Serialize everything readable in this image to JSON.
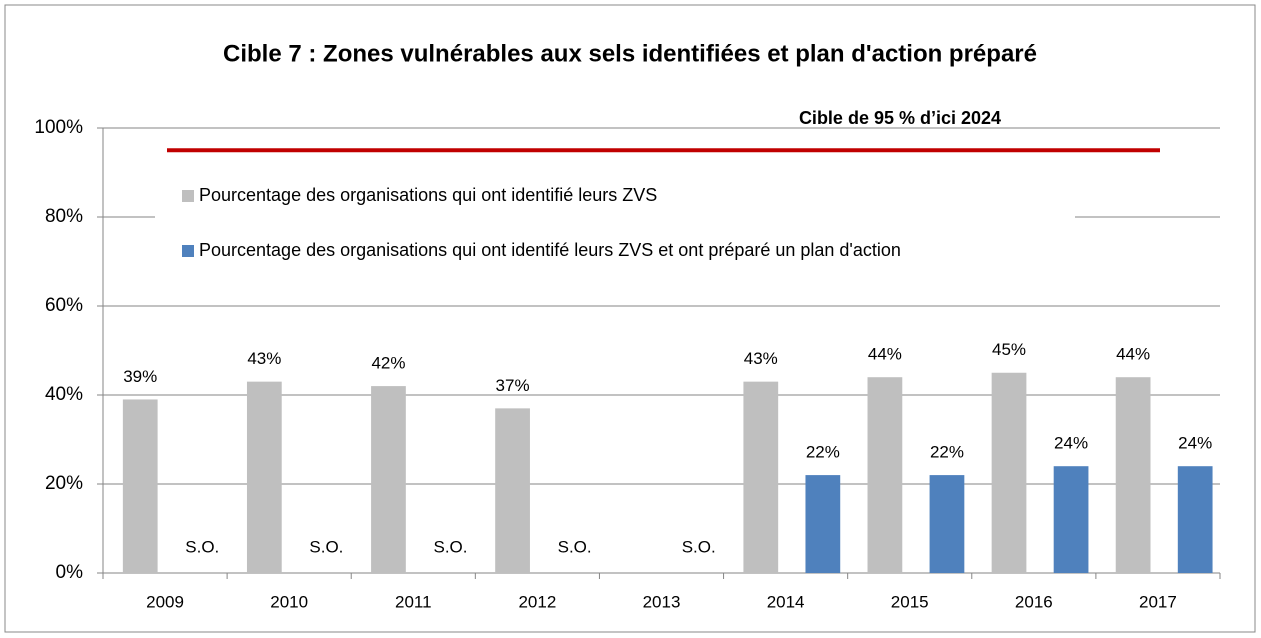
{
  "chart_data": {
    "type": "bar",
    "title": "Cible 7 : Zones vulnérables aux sels identifiées et plan d'action préparé",
    "categories": [
      "2009",
      "2010",
      "2011",
      "2012",
      "2013",
      "2014",
      "2015",
      "2016",
      "2017"
    ],
    "series": [
      {
        "name": "Pourcentage des organisations qui ont identifié leurs ZVS",
        "color": "#bfbfbf",
        "values": [
          39,
          43,
          42,
          37,
          null,
          43,
          44,
          45,
          44
        ],
        "value_labels": [
          "39%",
          "43%",
          "42%",
          "37%",
          null,
          "43%",
          "44%",
          "45%",
          "44%"
        ]
      },
      {
        "name": "Pourcentage des organisations qui ont identifé leurs ZVS et ont préparé un plan d'action",
        "color": "#4f81bd",
        "values": [
          null,
          null,
          null,
          null,
          null,
          22,
          22,
          24,
          24
        ],
        "value_labels": [
          "S.O.",
          "S.O.",
          "S.O.",
          "S.O.",
          "S.O.",
          "22%",
          "22%",
          "24%",
          "24%"
        ]
      }
    ],
    "target": {
      "value": 95,
      "label": "Cible de 95 % d’ici 2024",
      "color": "#c00000"
    },
    "ylim": [
      0,
      100
    ],
    "yticks": [
      {
        "value": 0,
        "label": "0%"
      },
      {
        "value": 20,
        "label": "20%"
      },
      {
        "value": 40,
        "label": "40%"
      },
      {
        "value": 60,
        "label": "60%"
      },
      {
        "value": 80,
        "label": "80%"
      },
      {
        "value": 100,
        "label": "100%"
      }
    ],
    "grid": true,
    "legend": "top-left"
  }
}
